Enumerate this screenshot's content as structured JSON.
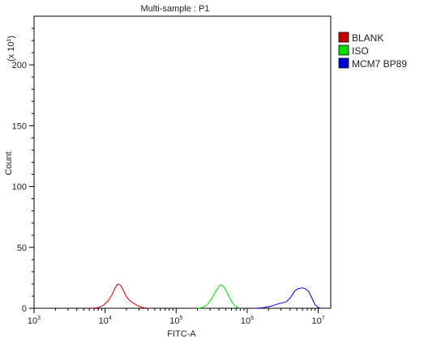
{
  "chart_data": {
    "type": "line",
    "title": "Multi-sample : P1",
    "xlabel": "FITC-A",
    "ylabel": "Count",
    "y_multiplier_label": "(x 10",
    "y_multiplier_exp": "1",
    "x_scale": "log",
    "xlim": [
      1000,
      15000000
    ],
    "ylim": [
      0,
      2400
    ],
    "x_ticks": [
      {
        "base": "10",
        "exp": "3",
        "value": 1000
      },
      {
        "base": "10",
        "exp": "4",
        "value": 10000
      },
      {
        "base": "10",
        "exp": "5",
        "value": 100000
      },
      {
        "base": "10",
        "exp": "6",
        "value": 1000000
      },
      {
        "base": "10",
        "exp": "7",
        "value": 10000000
      }
    ],
    "y_ticks": [
      0,
      50,
      100,
      150,
      200
    ],
    "legend_position": "top-right",
    "series": [
      {
        "name": "BLANK",
        "color": "#c00000",
        "x": [
          6500,
          8000,
          9500,
          11000,
          12500,
          13800,
          15000,
          16500,
          18000,
          20000,
          22500,
          25000,
          28000,
          32000,
          36000,
          42000
        ],
        "y": [
          0,
          5,
          25,
          60,
          110,
          165,
          198,
          190,
          150,
          95,
          60,
          42,
          25,
          10,
          3,
          0
        ]
      },
      {
        "name": "ISO",
        "color": "#00dd00",
        "x": [
          200000,
          230000,
          270000,
          310000,
          350000,
          390000,
          420000,
          450000,
          490000,
          540000,
          600000,
          680000,
          760000,
          820000
        ],
        "y": [
          0,
          5,
          25,
          70,
          125,
          170,
          193,
          188,
          160,
          110,
          55,
          18,
          3,
          0
        ]
      },
      {
        "name": "MCM7 BP89",
        "color": "#0000cc",
        "x": [
          1300000,
          1700000,
          2200000,
          2700000,
          3200000,
          3600000,
          4100000,
          4700000,
          5300000,
          5900000,
          6600000,
          7400000,
          8200000,
          9000000,
          10000000,
          11000000
        ],
        "y": [
          0,
          5,
          18,
          35,
          45,
          55,
          90,
          145,
          162,
          168,
          160,
          135,
          80,
          30,
          6,
          0
        ]
      }
    ]
  }
}
